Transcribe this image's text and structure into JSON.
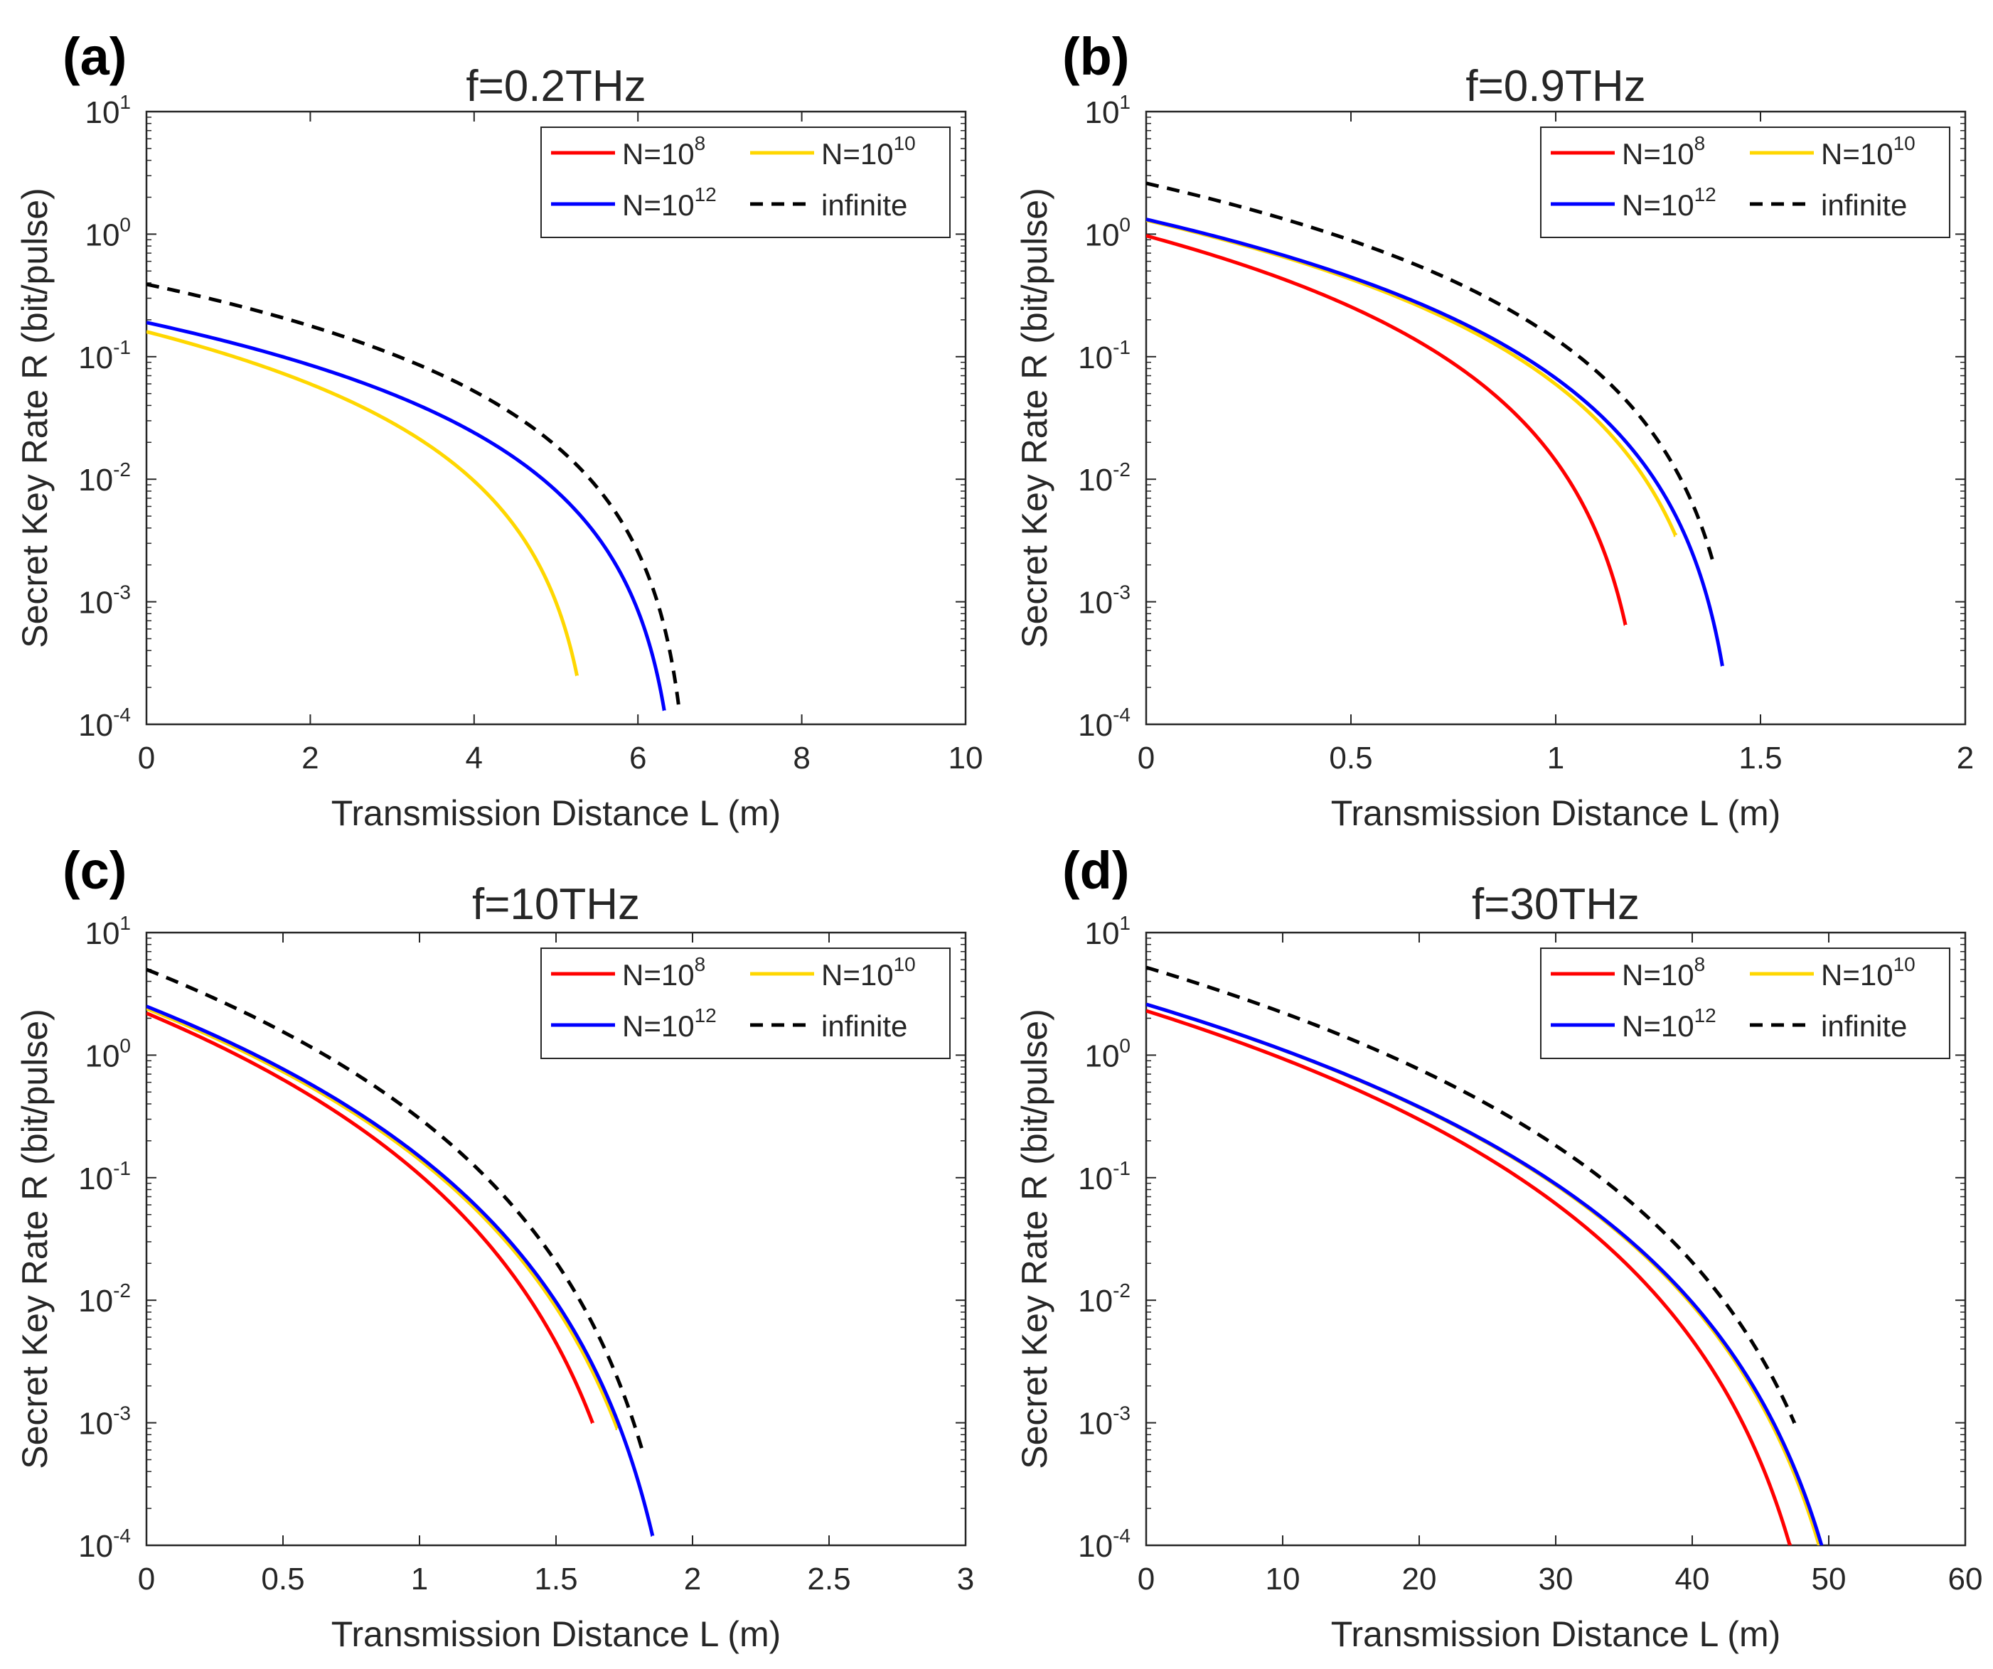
{
  "colors": {
    "N=10^8": "#ff0000",
    "N=10^10": "#ffd700",
    "N=10^12": "#0000ff",
    "infinite": "#000000"
  },
  "legend": [
    {
      "key": "n8",
      "base": "N=10",
      "exp": "8",
      "color": "#ff0000",
      "style": "solid"
    },
    {
      "key": "n10",
      "base": "N=10",
      "exp": "10",
      "color": "#ffd700",
      "style": "solid"
    },
    {
      "key": "n12",
      "base": "N=10",
      "exp": "12",
      "color": "#0000ff",
      "style": "solid"
    },
    {
      "key": "inf",
      "base": "infinite",
      "exp": "",
      "color": "#000000",
      "style": "dashed"
    }
  ],
  "chart_data": [
    {
      "panel": "(a)",
      "type": "line",
      "title": "f=0.2THz",
      "xlabel": "Transmission Distance L (m)",
      "ylabel": "Secret Key Rate R (bit/pulse)",
      "xlim": [
        0,
        10
      ],
      "xticks": [
        "0",
        "2",
        "4",
        "6",
        "8",
        "10"
      ],
      "ylim": [
        0.0001,
        10
      ],
      "yscale": "log",
      "yticks": [
        {
          "base": "10",
          "exp": "1"
        },
        {
          "base": "10",
          "exp": "0"
        },
        {
          "base": "10",
          "exp": "-1"
        },
        {
          "base": "10",
          "exp": "-2"
        },
        {
          "base": "10",
          "exp": "-3"
        },
        {
          "base": "10",
          "exp": "-4"
        }
      ],
      "legend_position": "top-right",
      "series": [
        {
          "name": "N=10^10",
          "color": "#ffd700",
          "dash": false,
          "R0": 0.16,
          "Lmax": 5.55,
          "end": 0.00025,
          "k": 2.2
        },
        {
          "name": "N=10^12",
          "color": "#0000ff",
          "dash": false,
          "R0": 0.19,
          "Lmax": 6.56,
          "end": 0.00013,
          "k": 2.2
        },
        {
          "name": "infinite",
          "color": "#000000",
          "dash": true,
          "R0": 0.39,
          "Lmax": 6.68,
          "end": 0.00013,
          "k": 2.2
        }
      ]
    },
    {
      "panel": "(b)",
      "type": "line",
      "title": "f=0.9THz",
      "xlabel": "Transmission Distance L (m)",
      "ylabel": "Secret Key Rate R (bit/pulse)",
      "xlim": [
        0,
        2
      ],
      "xticks": [
        "0",
        "0.5",
        "1",
        "1.5",
        "2"
      ],
      "ylim": [
        0.0001,
        10
      ],
      "yscale": "log",
      "yticks": [
        {
          "base": "10",
          "exp": "1"
        },
        {
          "base": "10",
          "exp": "0"
        },
        {
          "base": "10",
          "exp": "-1"
        },
        {
          "base": "10",
          "exp": "-2"
        },
        {
          "base": "10",
          "exp": "-3"
        },
        {
          "base": "10",
          "exp": "-4"
        }
      ],
      "legend_position": "top-right",
      "series": [
        {
          "name": "N=10^8",
          "color": "#ff0000",
          "dash": false,
          "R0": 0.97,
          "Lmax": 1.245,
          "end": 0.00065,
          "k": 2.6
        },
        {
          "name": "N=10^10",
          "color": "#ffd700",
          "dash": false,
          "R0": 1.3,
          "Lmax": 1.44,
          "end": 0.0035,
          "k": 2.6
        },
        {
          "name": "N=10^12",
          "color": "#0000ff",
          "dash": false,
          "R0": 1.32,
          "Lmax": 1.465,
          "end": 0.0003,
          "k": 2.6
        },
        {
          "name": "infinite",
          "color": "#000000",
          "dash": true,
          "R0": 2.6,
          "Lmax": 1.48,
          "end": 0.0022,
          "k": 2.6
        }
      ]
    },
    {
      "panel": "(c)",
      "type": "line",
      "title": "f=10THz",
      "xlabel": "Transmission Distance L (m)",
      "ylabel": "Secret Key Rate R (bit/pulse)",
      "xlim": [
        0,
        3
      ],
      "xticks": [
        "0",
        "0.5",
        "1",
        "1.5",
        "2",
        "2.5",
        "3"
      ],
      "ylim": [
        0.0001,
        10
      ],
      "yscale": "log",
      "yticks": [
        {
          "base": "10",
          "exp": "1"
        },
        {
          "base": "10",
          "exp": "0"
        },
        {
          "base": "10",
          "exp": "-1"
        },
        {
          "base": "10",
          "exp": "-2"
        },
        {
          "base": "10",
          "exp": "-3"
        },
        {
          "base": "10",
          "exp": "-4"
        }
      ],
      "legend_position": "top-right",
      "series": [
        {
          "name": "N=10^8",
          "color": "#ff0000",
          "dash": false,
          "R0": 2.2,
          "Lmax": 1.945,
          "end": 0.001,
          "k": 4.2
        },
        {
          "name": "N=10^10",
          "color": "#ffd700",
          "dash": false,
          "R0": 2.4,
          "Lmax": 2.035,
          "end": 0.0009,
          "k": 4.2
        },
        {
          "name": "N=10^12",
          "color": "#0000ff",
          "dash": false,
          "R0": 2.5,
          "Lmax": 2.045,
          "end": 0.00012,
          "k": 4.2
        },
        {
          "name": "infinite",
          "color": "#000000",
          "dash": true,
          "R0": 5.0,
          "Lmax": 2.055,
          "end": 0.0006,
          "k": 4.2
        }
      ]
    },
    {
      "panel": "(d)",
      "type": "line",
      "title": "f=30THz",
      "xlabel": "Transmission Distance L (m)",
      "ylabel": "Secret Key Rate R (bit/pulse)",
      "xlim": [
        0,
        60
      ],
      "xticks": [
        "0",
        "10",
        "20",
        "30",
        "40",
        "50",
        "60"
      ],
      "ylim": [
        0.0001,
        10
      ],
      "yscale": "log",
      "yticks": [
        {
          "base": "10",
          "exp": "1"
        },
        {
          "base": "10",
          "exp": "0"
        },
        {
          "base": "10",
          "exp": "-1"
        },
        {
          "base": "10",
          "exp": "-2"
        },
        {
          "base": "10",
          "exp": "-3"
        },
        {
          "base": "10",
          "exp": "-4"
        }
      ],
      "legend_position": "top-right",
      "series": [
        {
          "name": "N=10^8",
          "color": "#ff0000",
          "dash": false,
          "R0": 2.3,
          "Lmax": 51.9,
          "end": 0.0001,
          "k": 4.2
        },
        {
          "name": "N=10^10",
          "color": "#ffd700",
          "dash": false,
          "R0": 2.6,
          "Lmax": 54.1,
          "end": 0.0001,
          "k": 4.2
        },
        {
          "name": "N=10^12",
          "color": "#0000ff",
          "dash": false,
          "R0": 2.6,
          "Lmax": 54.3,
          "end": 0.0001,
          "k": 4.2
        },
        {
          "name": "infinite",
          "color": "#000000",
          "dash": true,
          "R0": 5.2,
          "Lmax": 54.6,
          "end": 0.001,
          "k": 4.2
        }
      ]
    }
  ]
}
